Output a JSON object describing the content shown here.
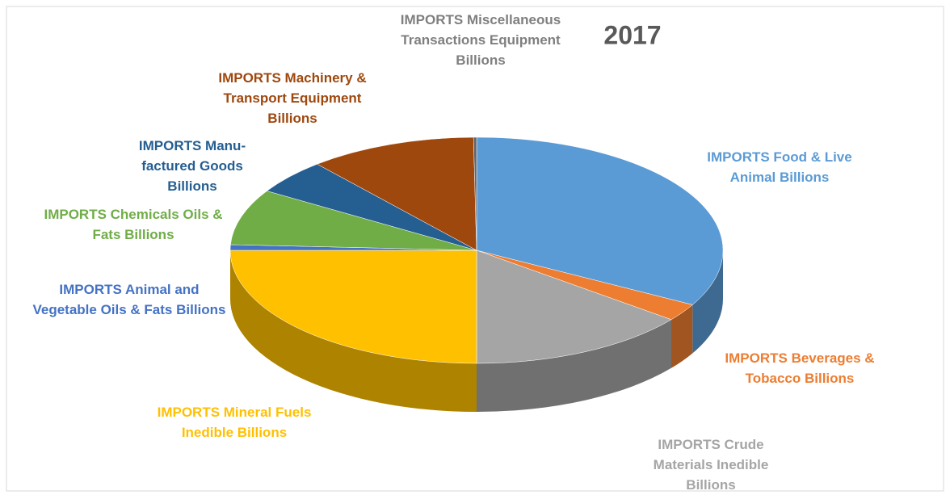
{
  "chart_data": {
    "type": "pie3d",
    "title": "2017",
    "categories": [
      "IMPORTS Food & Live Animal  Billions",
      "IMPORTS Beverages & Tobacco  Billions",
      "IMPORTS Crude Materials Inedible Billions",
      "IMPORTS Mineral Fuels Inedible Billions",
      "IMPORTS Animal and Vegetable Oils & Fats Billions",
      "IMPORTS Chemicals Oils & Fats Billions",
      "IMPORTS Manu-factured Goods Billions",
      "IMPORTS Machinery & Transport Equipment Billions",
      "IMPORTS Miscellaneous Transactions Equipment Billions"
    ],
    "values": [
      33,
      2.5,
      14.5,
      25,
      0.8,
      8,
      5,
      11,
      0.2
    ],
    "colors": [
      "#5b9bd5",
      "#ed7d31",
      "#a5a5a5",
      "#ffc000",
      "#4472c4",
      "#70ad47",
      "#255e91",
      "#9e480e",
      "#636363"
    ],
    "label_colors": [
      "#5b9bd5",
      "#ed7d31",
      "#a5a5a5",
      "#ffc000",
      "#4472c4",
      "#70ad47",
      "#255e91",
      "#9e480e",
      "#7f7f7f"
    ]
  }
}
